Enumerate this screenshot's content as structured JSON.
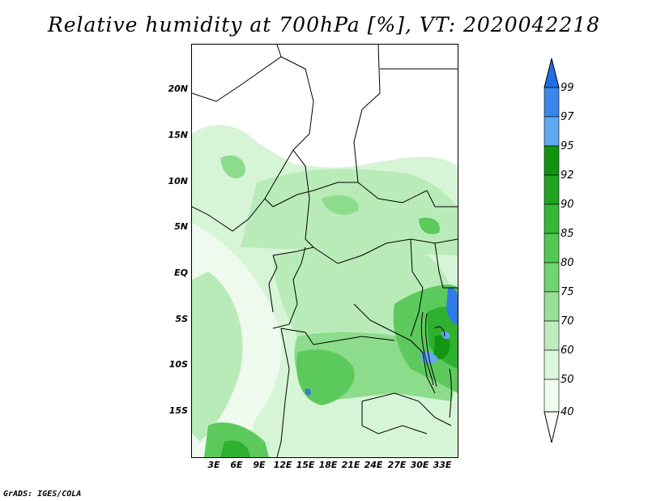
{
  "title": "Relative humidity at 700hPa [%], VT: 2020042218",
  "credit": "GrADS: IGES/COLA",
  "y_axis_labels": [
    "20N",
    "15N",
    "10N",
    "5N",
    "EQ",
    "5S",
    "10S",
    "15S"
  ],
  "x_axis_labels": [
    "3E",
    "6E",
    "9E",
    "12E",
    "15E",
    "18E",
    "21E",
    "24E",
    "27E",
    "30E",
    "33E"
  ],
  "colorbar": {
    "labels": [
      "99",
      "97",
      "95",
      "92",
      "90",
      "85",
      "80",
      "75",
      "70",
      "60",
      "50",
      "40"
    ],
    "colors": [
      "#1f6fe0",
      "#3a86ea",
      "#62a8f2",
      "#109410",
      "#20a420",
      "#36b836",
      "#52c852",
      "#70d470",
      "#98e098",
      "#bfecbf",
      "#dcf6dc",
      "#f0fbf0"
    ]
  },
  "map_colors": {
    "background": "#ffffff",
    "lightest": "#eefaee",
    "light": "#d6f4d6",
    "mid_light": "#b8ebb8",
    "mid": "#8cdc8c",
    "mid_dark": "#5cc95c",
    "dark": "#2fb02f",
    "darkest": "#129612",
    "blue_light": "#62a8f2",
    "blue": "#2f7ae4",
    "border": "#000000"
  }
}
